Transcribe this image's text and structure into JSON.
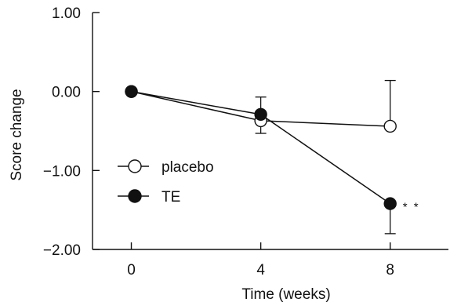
{
  "chart_data": {
    "type": "line",
    "xlabel": "Time (weeks)",
    "ylabel": "Score change",
    "x": [
      0,
      4,
      8
    ],
    "x_ticks": [
      "0",
      "4",
      "8"
    ],
    "y_ticks": [
      "1.00",
      "0.00",
      "−1.00",
      "−2.00"
    ],
    "y_tick_values": [
      1.0,
      0.0,
      -1.0,
      -2.0
    ],
    "ylim": [
      -2.0,
      1.0
    ],
    "xlim": [
      -1.2,
      9.8
    ],
    "grid": false,
    "legend_position": "center-left",
    "series": [
      {
        "name": "placebo",
        "marker": "open-circle",
        "values": [
          0.0,
          -0.37,
          -0.44
        ],
        "error_upper": [
          0.0,
          0.0,
          0.58
        ],
        "error_lower": [
          0.0,
          0.16,
          0.0
        ]
      },
      {
        "name": "TE",
        "marker": "filled-circle",
        "values": [
          0.0,
          -0.29,
          -1.42
        ],
        "error_upper": [
          0.0,
          0.22,
          0.0
        ],
        "error_lower": [
          0.0,
          0.0,
          0.38
        ]
      }
    ],
    "annotations": [
      {
        "text": "* *",
        "x": 8,
        "y": -1.42
      }
    ]
  }
}
